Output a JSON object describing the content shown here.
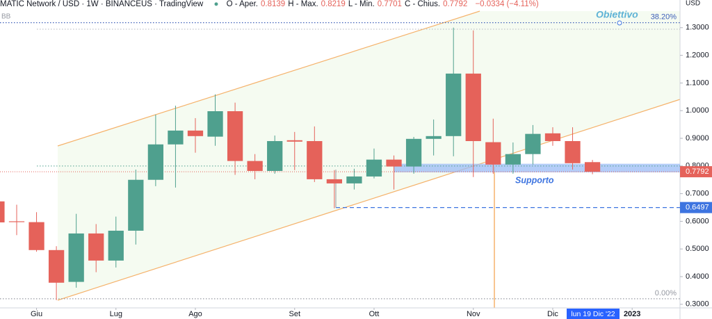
{
  "chart_data": {
    "type": "candlestick",
    "title": "MATIC Network / USD · 1W · BINANCEUS · TradingView",
    "ohlc_header": [
      {
        "label": "O - Aper.",
        "value": 0.8139
      },
      {
        "label": "H - Max.",
        "value": 0.8219
      },
      {
        "label": "L - Min.",
        "value": 0.7701
      },
      {
        "label": "C - Chius.",
        "value": 0.7792
      }
    ],
    "change_label": "−0.0334 (−4.11%)",
    "indicator": "BB",
    "currency": "USD",
    "up_color": "#4fa08e",
    "down_color": "#e5625a",
    "candles": [
      {
        "open": 0.672,
        "high": 0.69,
        "low": 0.59,
        "close": 0.596
      },
      {
        "open": 0.6,
        "high": 0.66,
        "low": 0.55,
        "close": 0.597
      },
      {
        "open": 0.597,
        "high": 0.633,
        "low": 0.49,
        "close": 0.496
      },
      {
        "open": 0.496,
        "high": 0.51,
        "low": 0.315,
        "close": 0.378
      },
      {
        "open": 0.381,
        "high": 0.627,
        "low": 0.36,
        "close": 0.556
      },
      {
        "open": 0.556,
        "high": 0.59,
        "low": 0.416,
        "close": 0.458
      },
      {
        "open": 0.458,
        "high": 0.617,
        "low": 0.433,
        "close": 0.566
      },
      {
        "open": 0.566,
        "high": 0.787,
        "low": 0.516,
        "close": 0.75
      },
      {
        "open": 0.75,
        "high": 0.986,
        "low": 0.727,
        "close": 0.878
      },
      {
        "open": 0.878,
        "high": 1.018,
        "low": 0.722,
        "close": 0.928
      },
      {
        "open": 0.928,
        "high": 0.973,
        "low": 0.848,
        "close": 0.908
      },
      {
        "open": 0.906,
        "high": 1.059,
        "low": 0.873,
        "close": 0.998
      },
      {
        "open": 0.998,
        "high": 1.029,
        "low": 0.768,
        "close": 0.818
      },
      {
        "open": 0.818,
        "high": 0.843,
        "low": 0.752,
        "close": 0.782
      },
      {
        "open": 0.782,
        "high": 0.91,
        "low": 0.772,
        "close": 0.89
      },
      {
        "open": 0.893,
        "high": 0.923,
        "low": 0.785,
        "close": 0.888
      },
      {
        "open": 0.89,
        "high": 0.943,
        "low": 0.742,
        "close": 0.752
      },
      {
        "open": 0.752,
        "high": 0.785,
        "low": 0.647,
        "close": 0.737
      },
      {
        "open": 0.737,
        "high": 0.79,
        "low": 0.715,
        "close": 0.762
      },
      {
        "open": 0.762,
        "high": 0.863,
        "low": 0.755,
        "close": 0.823
      },
      {
        "open": 0.823,
        "high": 0.838,
        "low": 0.715,
        "close": 0.798
      },
      {
        "open": 0.798,
        "high": 0.905,
        "low": 0.772,
        "close": 0.898
      },
      {
        "open": 0.898,
        "high": 0.968,
        "low": 0.838,
        "close": 0.908
      },
      {
        "open": 0.908,
        "high": 1.3,
        "low": 0.835,
        "close": 1.134
      },
      {
        "open": 1.134,
        "high": 1.29,
        "low": 0.76,
        "close": 0.89
      },
      {
        "open": 0.886,
        "high": 0.971,
        "low": 0.772,
        "close": 0.805
      },
      {
        "open": 0.805,
        "high": 0.885,
        "low": 0.772,
        "close": 0.843
      },
      {
        "open": 0.843,
        "high": 0.948,
        "low": 0.805,
        "close": 0.916
      },
      {
        "open": 0.918,
        "high": 0.94,
        "low": 0.873,
        "close": 0.89
      },
      {
        "open": 0.89,
        "high": 0.94,
        "low": 0.787,
        "close": 0.81
      },
      {
        "open": 0.8139,
        "high": 0.8219,
        "low": 0.7701,
        "close": 0.7792
      }
    ],
    "xlim": [
      0.16,
      34.41
    ],
    "xticks": [
      {
        "value": 2,
        "label": "Giu"
      },
      {
        "value": 6,
        "label": "Lug"
      },
      {
        "value": 10,
        "label": "Ago"
      },
      {
        "value": 15,
        "label": "Set"
      },
      {
        "value": 19,
        "label": "Ott"
      },
      {
        "value": 24,
        "label": "Nov"
      },
      {
        "value": 28,
        "label": "Dic"
      },
      {
        "value": 32,
        "label": "2023"
      }
    ],
    "crosshair_label": "lun 19 Dic '22",
    "ylim": [
      0.287,
      1.4
    ],
    "yticks": [
      {
        "value": 1.3,
        "label": "1.3000"
      },
      {
        "value": 1.2,
        "label": "1.2000"
      },
      {
        "value": 1.1,
        "label": "1.1000"
      },
      {
        "value": 1.0,
        "label": "1.0000"
      },
      {
        "value": 0.9,
        "label": "0.9000"
      },
      {
        "value": 0.8,
        "label": "0.8000"
      },
      {
        "value": 0.7,
        "label": "0.7000"
      },
      {
        "value": 0.6,
        "label": "0.6000"
      },
      {
        "value": 0.5,
        "label": "0.5000"
      },
      {
        "value": 0.4,
        "label": "0.4000"
      },
      {
        "value": 0.3,
        "label": "0.3000"
      }
    ],
    "last_price": 0.7792,
    "level_line": 0.6497,
    "fib_levels": [
      {
        "label": "38.20%",
        "price": 1.318
      },
      {
        "label": "0.00%",
        "price": 0.32
      }
    ],
    "target_label": "Obiettivo",
    "support_zone": {
      "label": "Supporto",
      "from": 0.777,
      "to": 0.808
    }
  }
}
